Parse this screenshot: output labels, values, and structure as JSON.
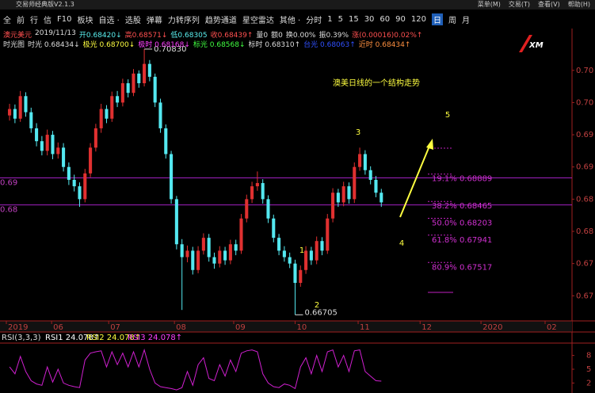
{
  "window_title": "交易师经典版V2.1.3",
  "menu": [
    "菜单(M)",
    "交易(T)",
    "查看(V)",
    "帮助(H)"
  ],
  "toolbar": [
    "全",
    "前",
    "行",
    "信",
    "F10",
    "板块",
    "自选 ·",
    "选股",
    "弹幕",
    "力转序列",
    "趋势通道",
    "星空雷达",
    "其他 ·",
    "分时",
    "1",
    "5",
    "15",
    "30",
    "60",
    "90",
    "120",
    "日",
    "周",
    "月"
  ],
  "toolbar_active": "日",
  "info_line": [
    {
      "text": "澳元美元",
      "color": "#ff5050"
    },
    {
      "text": "2019/11/13",
      "color": "#dddddd"
    },
    {
      "text": "开0.68420↓",
      "color": "#5af0f0"
    },
    {
      "text": "高0.68571↓",
      "color": "#ff5050"
    },
    {
      "text": "低0.68305",
      "color": "#5af0f0"
    },
    {
      "text": "收0.68439↑",
      "color": "#ff5050"
    },
    {
      "text": "量0",
      "color": "#dddddd"
    },
    {
      "text": "额0",
      "color": "#dddddd"
    },
    {
      "text": "换0.00%",
      "color": "#dddddd"
    },
    {
      "text": "振0.39%",
      "color": "#dddddd"
    },
    {
      "text": "涨(0.00016)0.02%↑",
      "color": "#ff5050"
    }
  ],
  "indicator_line": [
    {
      "text": "时光图",
      "color": "#dddddd"
    },
    {
      "text": "时光 0.68434↓",
      "color": "#dddddd"
    },
    {
      "text": "极光 0.68700↓",
      "color": "#ffff40"
    },
    {
      "text": "极时 0.68168↓",
      "color": "#ff40ff"
    },
    {
      "text": "标光 0.68568↓",
      "color": "#40ff40"
    },
    {
      "text": "标时 0.68310↑",
      "color": "#dddddd"
    },
    {
      "text": "台光 0.68063↑",
      "color": "#3050ff"
    },
    {
      "text": "近时 0.68434↑",
      "color": "#ff9040"
    }
  ],
  "logo": "XM",
  "chart_data": {
    "type": "candlestick",
    "title": "澳美日线的一个结构走势",
    "up_color": "#e03030",
    "down_color": "#54e8f0",
    "xlim": [
      -0.6,
      104.4
    ],
    "xticks": [
      {
        "value": -0.6,
        "label": "2019"
      },
      {
        "value": 7.8,
        "label": "06"
      },
      {
        "value": 18.4,
        "label": "07"
      },
      {
        "value": 30.6,
        "label": "08"
      },
      {
        "value": 41.6,
        "label": "09"
      },
      {
        "value": 53,
        "label": "10"
      },
      {
        "value": 64.7,
        "label": "11"
      },
      {
        "value": 76.2,
        "label": "12"
      },
      {
        "value": 87.5,
        "label": "2020"
      },
      {
        "value": 99.4,
        "label": "02"
      }
    ],
    "ylim": [
      0.6661,
      0.711
    ],
    "yticks": [
      {
        "value": 0.705,
        "label": "0.70"
      },
      {
        "value": 0.7,
        "label": "0.70"
      },
      {
        "value": 0.695,
        "label": "0.69"
      },
      {
        "value": 0.69,
        "label": "0.69"
      },
      {
        "value": 0.685,
        "label": "0.68"
      },
      {
        "value": 0.68,
        "label": "0.68"
      },
      {
        "value": 0.675,
        "label": "0.67"
      },
      {
        "value": 0.67,
        "label": "0.67"
      }
    ],
    "ohlc": [
      [
        0.698,
        0.6998,
        0.6972,
        0.699
      ],
      [
        0.699,
        0.6997,
        0.6968,
        0.6975
      ],
      [
        0.6975,
        0.7018,
        0.697,
        0.701
      ],
      [
        0.701,
        0.7016,
        0.6978,
        0.6985
      ],
      [
        0.6985,
        0.6992,
        0.6953,
        0.696
      ],
      [
        0.696,
        0.6968,
        0.6932,
        0.694
      ],
      [
        0.694,
        0.6948,
        0.6918,
        0.6925
      ],
      [
        0.6925,
        0.6958,
        0.6918,
        0.695
      ],
      [
        0.695,
        0.6956,
        0.6912,
        0.692
      ],
      [
        0.692,
        0.6938,
        0.6913,
        0.693
      ],
      [
        0.693,
        0.6937,
        0.6893,
        0.69
      ],
      [
        0.69,
        0.6907,
        0.6872,
        0.688
      ],
      [
        0.688,
        0.6888,
        0.6862,
        0.687
      ],
      [
        0.687,
        0.6876,
        0.6838,
        0.685
      ],
      [
        0.685,
        0.6897,
        0.6845,
        0.689
      ],
      [
        0.689,
        0.6937,
        0.6884,
        0.693
      ],
      [
        0.693,
        0.6967,
        0.6924,
        0.696
      ],
      [
        0.696,
        0.6998,
        0.6953,
        0.699
      ],
      [
        0.699,
        0.6996,
        0.6968,
        0.6975
      ],
      [
        0.6975,
        0.7017,
        0.697,
        0.701
      ],
      [
        0.701,
        0.7018,
        0.6993,
        0.7
      ],
      [
        0.7,
        0.7037,
        0.6994,
        0.703
      ],
      [
        0.703,
        0.7036,
        0.7008,
        0.7015
      ],
      [
        0.7015,
        0.7052,
        0.701,
        0.7045
      ],
      [
        0.7045,
        0.705,
        0.7023,
        0.703
      ],
      [
        0.703,
        0.7083,
        0.7025,
        0.706
      ],
      [
        0.706,
        0.7066,
        0.7033,
        0.704
      ],
      [
        0.704,
        0.7045,
        0.6993,
        0.7
      ],
      [
        0.7,
        0.7006,
        0.6953,
        0.696
      ],
      [
        0.696,
        0.6966,
        0.6913,
        0.692
      ],
      [
        0.692,
        0.6925,
        0.6843,
        0.685
      ],
      [
        0.685,
        0.6855,
        0.6772,
        0.678
      ],
      [
        0.678,
        0.6788,
        0.6678,
        0.676
      ],
      [
        0.676,
        0.6778,
        0.6752,
        0.677
      ],
      [
        0.677,
        0.6776,
        0.6733,
        0.674
      ],
      [
        0.674,
        0.6777,
        0.6735,
        0.677
      ],
      [
        0.677,
        0.6797,
        0.6764,
        0.679
      ],
      [
        0.679,
        0.6796,
        0.6753,
        0.676
      ],
      [
        0.676,
        0.6767,
        0.6742,
        0.675
      ],
      [
        0.675,
        0.6777,
        0.6744,
        0.677
      ],
      [
        0.677,
        0.6776,
        0.6748,
        0.6755
      ],
      [
        0.6755,
        0.6787,
        0.6749,
        0.678
      ],
      [
        0.678,
        0.6787,
        0.6763,
        0.677
      ],
      [
        0.677,
        0.6827,
        0.6765,
        0.682
      ],
      [
        0.682,
        0.6857,
        0.6814,
        0.685
      ],
      [
        0.685,
        0.6877,
        0.6844,
        0.687
      ],
      [
        0.687,
        0.6893,
        0.6863,
        0.6875
      ],
      [
        0.6875,
        0.6881,
        0.6843,
        0.685
      ],
      [
        0.685,
        0.6856,
        0.6813,
        0.682
      ],
      [
        0.682,
        0.6826,
        0.6783,
        0.679
      ],
      [
        0.679,
        0.6796,
        0.6763,
        0.677
      ],
      [
        0.677,
        0.6777,
        0.6753,
        0.676
      ],
      [
        0.676,
        0.6767,
        0.6743,
        0.675
      ],
      [
        0.675,
        0.6756,
        0.66705,
        0.672
      ],
      [
        0.672,
        0.6747,
        0.6714,
        0.674
      ],
      [
        0.674,
        0.6777,
        0.6734,
        0.677
      ],
      [
        0.677,
        0.6776,
        0.6748,
        0.6755
      ],
      [
        0.6755,
        0.6792,
        0.6749,
        0.6785
      ],
      [
        0.6785,
        0.6791,
        0.6763,
        0.677
      ],
      [
        0.677,
        0.6827,
        0.6765,
        0.682
      ],
      [
        0.682,
        0.6867,
        0.6814,
        0.686
      ],
      [
        0.686,
        0.6866,
        0.6838,
        0.6845
      ],
      [
        0.6845,
        0.6877,
        0.6839,
        0.687
      ],
      [
        0.687,
        0.6876,
        0.6843,
        0.685
      ],
      [
        0.685,
        0.6907,
        0.6844,
        0.69
      ],
      [
        0.69,
        0.693,
        0.6894,
        0.692
      ],
      [
        0.692,
        0.6926,
        0.6888,
        0.6895
      ],
      [
        0.6895,
        0.6901,
        0.6873,
        0.688
      ],
      [
        0.688,
        0.6886,
        0.6853,
        0.686
      ],
      [
        0.686,
        0.6866,
        0.6838,
        0.6845
      ]
    ],
    "peak_label": {
      "value": 0.7083,
      "label": "0.70830"
    },
    "low_label": {
      "value": 0.66705,
      "label": "0.66705"
    },
    "hlines": [
      {
        "value": 0.6883,
        "label": "0.69"
      },
      {
        "value": 0.6841,
        "label": "0.68"
      }
    ],
    "fib_levels": [
      {
        "value": 0.68889,
        "label": "19.1% 0.68889"
      },
      {
        "value": 0.68465,
        "label": "38.2% 0.68465"
      },
      {
        "value": 0.68203,
        "label": "50.0% 0.68203"
      },
      {
        "value": 0.67941,
        "label": "61.8% 0.67941"
      },
      {
        "value": 0.67517,
        "label": "80.9% 0.67517"
      }
    ],
    "wave_labels": [
      "1",
      "2",
      "3",
      "4",
      "5"
    ]
  },
  "rsi": {
    "title": "RSI(3,3,3)",
    "items": [
      "RSI1 24.078↑",
      "RSI2 24.078↑",
      "RSI3 24.078↑"
    ],
    "ylim": [
      0,
      100
    ],
    "yticks": [
      {
        "value": 80,
        "label": "8"
      },
      {
        "value": 50,
        "label": "5"
      },
      {
        "value": 20,
        "label": "2"
      }
    ],
    "values": [
      55,
      40,
      78,
      45,
      25,
      18,
      15,
      55,
      22,
      50,
      20,
      15,
      12,
      10,
      70,
      85,
      88,
      90,
      55,
      88,
      60,
      85,
      55,
      88,
      55,
      92,
      50,
      20,
      12,
      10,
      8,
      5,
      10,
      45,
      15,
      60,
      75,
      30,
      25,
      60,
      35,
      70,
      45,
      85,
      90,
      92,
      88,
      40,
      20,
      12,
      10,
      18,
      15,
      8,
      55,
      75,
      40,
      80,
      45,
      88,
      92,
      55,
      80,
      45,
      90,
      92,
      45,
      35,
      25,
      24.078
    ]
  }
}
